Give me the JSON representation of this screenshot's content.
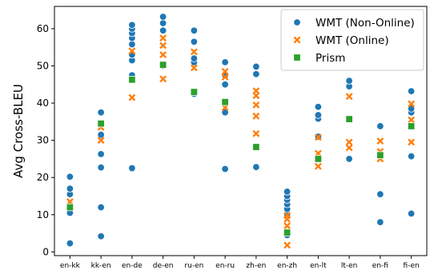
{
  "chart_data": {
    "type": "scatter",
    "ylabel": "Avg Cross-BLEU",
    "ylim": [
      -1,
      66
    ],
    "yticks": [
      0,
      10,
      20,
      30,
      40,
      50,
      60
    ],
    "grid": false,
    "legend_placement": "top-right",
    "categories": [
      "en-kk",
      "kk-en",
      "en-de",
      "de-en",
      "ru-en",
      "en-ru",
      "zh-en",
      "en-zh",
      "en-lt",
      "lt-en",
      "en-fi",
      "fi-en"
    ],
    "series": [
      {
        "name": "WMT (Non-Online)",
        "marker": "circle",
        "color": "#1f77b4",
        "points": [
          [
            "en-kk",
            2.3
          ],
          [
            "en-kk",
            10.5
          ],
          [
            "en-kk",
            12.5
          ],
          [
            "en-kk",
            15.5
          ],
          [
            "en-kk",
            17.0
          ],
          [
            "en-kk",
            20.2
          ],
          [
            "kk-en",
            4.2
          ],
          [
            "kk-en",
            12.0
          ],
          [
            "kk-en",
            22.7
          ],
          [
            "kk-en",
            26.3
          ],
          [
            "kk-en",
            30.8
          ],
          [
            "kk-en",
            31.5
          ],
          [
            "kk-en",
            37.5
          ],
          [
            "en-de",
            22.5
          ],
          [
            "en-de",
            47.5
          ],
          [
            "en-de",
            51.5
          ],
          [
            "en-de",
            53.0
          ],
          [
            "en-de",
            55.8
          ],
          [
            "en-de",
            57.5
          ],
          [
            "en-de",
            58.8
          ],
          [
            "en-de",
            60.0
          ],
          [
            "en-de",
            61.0
          ],
          [
            "de-en",
            50.0
          ],
          [
            "de-en",
            59.5
          ],
          [
            "de-en",
            61.5
          ],
          [
            "de-en",
            63.2
          ],
          [
            "ru-en",
            42.5
          ],
          [
            "ru-en",
            51.0
          ],
          [
            "ru-en",
            52.0
          ],
          [
            "ru-en",
            56.5
          ],
          [
            "ru-en",
            59.5
          ],
          [
            "en-ru",
            22.3
          ],
          [
            "en-ru",
            37.5
          ],
          [
            "en-ru",
            45.0
          ],
          [
            "en-ru",
            47.5
          ],
          [
            "en-ru",
            51.0
          ],
          [
            "zh-en",
            22.8
          ],
          [
            "zh-en",
            47.8
          ],
          [
            "zh-en",
            49.8
          ],
          [
            "en-zh",
            4.5
          ],
          [
            "en-zh",
            10.2
          ],
          [
            "en-zh",
            11.5
          ],
          [
            "en-zh",
            12.8
          ],
          [
            "en-zh",
            14.0
          ],
          [
            "en-zh",
            15.0
          ],
          [
            "en-zh",
            16.2
          ],
          [
            "en-lt",
            31.0
          ],
          [
            "en-lt",
            35.8
          ],
          [
            "en-lt",
            36.8
          ],
          [
            "en-lt",
            39.0
          ],
          [
            "lt-en",
            25.0
          ],
          [
            "lt-en",
            44.5
          ],
          [
            "lt-en",
            46.0
          ],
          [
            "en-fi",
            8.0
          ],
          [
            "en-fi",
            15.5
          ],
          [
            "en-fi",
            33.8
          ],
          [
            "fi-en",
            10.3
          ],
          [
            "fi-en",
            25.7
          ],
          [
            "fi-en",
            37.5
          ],
          [
            "fi-en",
            38.5
          ],
          [
            "fi-en",
            43.2
          ]
        ]
      },
      {
        "name": "WMT (Online)",
        "marker": "x",
        "color": "#ff7f0e",
        "points": [
          [
            "en-kk",
            13.5
          ],
          [
            "kk-en",
            30.0
          ],
          [
            "kk-en",
            33.5
          ],
          [
            "en-de",
            41.5
          ],
          [
            "en-de",
            54.0
          ],
          [
            "de-en",
            46.5
          ],
          [
            "de-en",
            53.0
          ],
          [
            "de-en",
            55.5
          ],
          [
            "de-en",
            57.5
          ],
          [
            "ru-en",
            49.5
          ],
          [
            "ru-en",
            53.8
          ],
          [
            "en-ru",
            38.8
          ],
          [
            "en-ru",
            47.0
          ],
          [
            "en-ru",
            48.5
          ],
          [
            "zh-en",
            31.8
          ],
          [
            "zh-en",
            36.5
          ],
          [
            "zh-en",
            39.5
          ],
          [
            "zh-en",
            42.0
          ],
          [
            "zh-en",
            43.3
          ],
          [
            "en-zh",
            1.8
          ],
          [
            "en-zh",
            7.0
          ],
          [
            "en-zh",
            8.8
          ],
          [
            "en-zh",
            9.8
          ],
          [
            "en-lt",
            23.0
          ],
          [
            "en-lt",
            26.5
          ],
          [
            "en-lt",
            30.8
          ],
          [
            "lt-en",
            28.0
          ],
          [
            "lt-en",
            29.5
          ],
          [
            "lt-en",
            41.8
          ],
          [
            "en-fi",
            25.0
          ],
          [
            "en-fi",
            27.0
          ],
          [
            "en-fi",
            29.8
          ],
          [
            "fi-en",
            29.5
          ],
          [
            "fi-en",
            35.5
          ],
          [
            "fi-en",
            39.8
          ]
        ]
      },
      {
        "name": "Prism",
        "marker": "square",
        "color": "#2ca02c",
        "points": [
          [
            "en-kk",
            12.0
          ],
          [
            "kk-en",
            34.5
          ],
          [
            "en-de",
            46.3
          ],
          [
            "de-en",
            50.3
          ],
          [
            "ru-en",
            43.0
          ],
          [
            "en-ru",
            40.3
          ],
          [
            "zh-en",
            28.2
          ],
          [
            "en-zh",
            5.2
          ],
          [
            "en-lt",
            25.0
          ],
          [
            "lt-en",
            35.7
          ],
          [
            "en-fi",
            26.0
          ],
          [
            "fi-en",
            33.8
          ]
        ]
      }
    ]
  }
}
